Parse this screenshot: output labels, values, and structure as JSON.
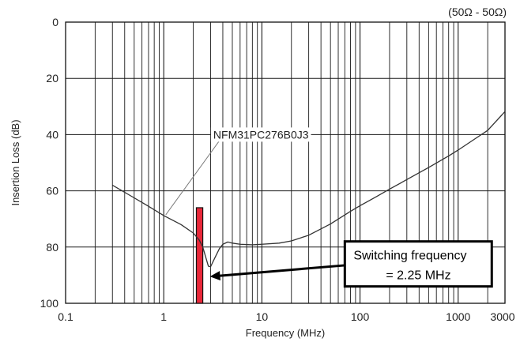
{
  "chart_data": {
    "type": "line",
    "title": "",
    "condition_note": "(50Ω - 50Ω)",
    "xlabel": "Frequency (MHz)",
    "ylabel": "Insertion Loss (dB)",
    "x_scale": "log",
    "xlim": [
      0.1,
      3000
    ],
    "ylim": [
      0,
      100
    ],
    "y_inverted": true,
    "x_ticks": [
      0.1,
      1,
      10,
      100,
      1000,
      3000
    ],
    "x_tick_labels": [
      "0.1",
      "1",
      "10",
      "100",
      "1000",
      "3000"
    ],
    "y_ticks": [
      0,
      20,
      40,
      60,
      80,
      100
    ],
    "y_tick_labels": [
      "0",
      "20",
      "40",
      "60",
      "80",
      "100"
    ],
    "grid": true,
    "series": [
      {
        "name": "NFM31PC276B0J3",
        "color": "#333333",
        "points": [
          [
            0.3,
            58
          ],
          [
            0.5,
            62.5
          ],
          [
            0.7,
            65.5
          ],
          [
            1.0,
            68.8
          ],
          [
            1.5,
            72
          ],
          [
            2.0,
            75
          ],
          [
            2.3,
            77.5
          ],
          [
            2.5,
            80
          ],
          [
            2.7,
            84
          ],
          [
            2.85,
            86.8
          ],
          [
            3.0,
            87
          ],
          [
            3.3,
            84
          ],
          [
            3.7,
            80.5
          ],
          [
            4.0,
            79
          ],
          [
            4.5,
            78.2
          ],
          [
            5.0,
            78.6
          ],
          [
            6.0,
            79
          ],
          [
            8.0,
            79.2
          ],
          [
            10,
            79
          ],
          [
            15,
            78.6
          ],
          [
            20,
            77.8
          ],
          [
            30,
            75.8
          ],
          [
            50,
            71.8
          ],
          [
            80,
            67.3
          ],
          [
            100,
            65.3
          ],
          [
            150,
            61.9
          ],
          [
            200,
            59.4
          ],
          [
            300,
            56
          ],
          [
            500,
            51.7
          ],
          [
            800,
            47.6
          ],
          [
            1000,
            45.5
          ],
          [
            1500,
            41.4
          ],
          [
            2000,
            38.5
          ],
          [
            3000,
            31.8
          ]
        ]
      }
    ],
    "series_label": {
      "text": "NFM31PC276B0J3",
      "label_at": [
        3.2,
        40
      ],
      "leader_from": [
        4.0,
        40.5
      ],
      "leader_to": [
        1.05,
        68.5
      ]
    },
    "highlight_band": {
      "x_from": 2.15,
      "x_to": 2.5,
      "y_from": 66,
      "y_to": 100,
      "color": "#e8283a"
    },
    "callout": {
      "line1": "Switching frequency",
      "line2": "= 2.25 MHz",
      "box_from": [
        70,
        78
      ],
      "box_to": [
        2200,
        94
      ],
      "arrow_from": [
        70,
        86.5
      ],
      "arrow_to": [
        2.95,
        90.5
      ]
    }
  }
}
